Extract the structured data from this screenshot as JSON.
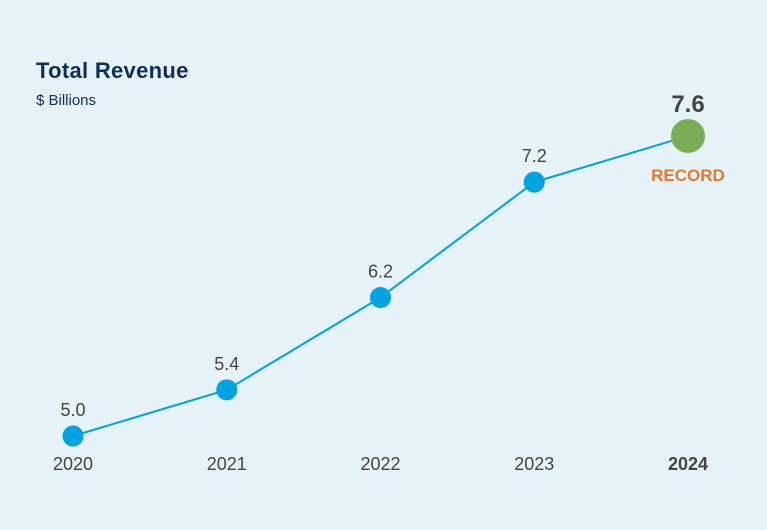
{
  "chart_data": {
    "type": "line",
    "title": "Total Revenue",
    "subtitle": "$ Billions",
    "categories": [
      "2020",
      "2021",
      "2022",
      "2023",
      "2024"
    ],
    "values": [
      5.0,
      5.4,
      6.2,
      7.2,
      7.6
    ],
    "data_labels": [
      "5.0",
      "5.4",
      "6.2",
      "7.2",
      "7.6"
    ],
    "highlight": {
      "index": 4,
      "annotation": "RECORD"
    },
    "grid": false,
    "legend": "none",
    "colors": {
      "background": "#e6f3f9",
      "title": "#0f2d5a",
      "line": "#00a3e0",
      "highlight_marker": "#7aab55",
      "annotation": "#e8782a",
      "text": "#444444"
    }
  }
}
